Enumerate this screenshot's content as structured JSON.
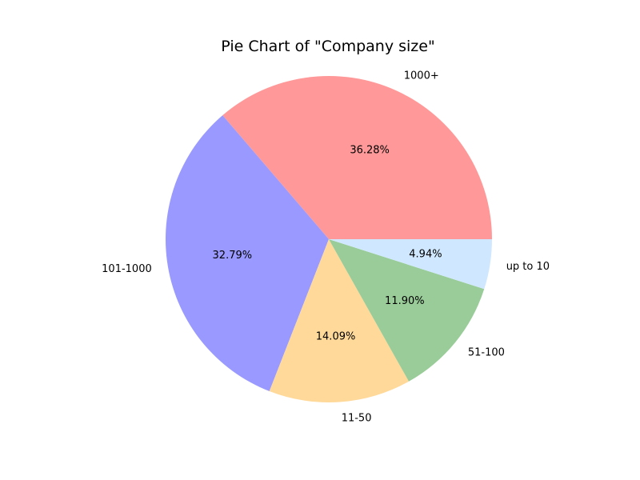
{
  "chart_data": {
    "type": "pie",
    "title": "Pie Chart of \"Company size\"",
    "start_angle_deg": 0,
    "direction": "counterclockwise",
    "slices": [
      {
        "label": "1000+",
        "value": 36.28,
        "percent_label": "36.28%",
        "color": "#ff9999"
      },
      {
        "label": "101-1000",
        "value": 32.79,
        "percent_label": "32.79%",
        "color": "#9999ff"
      },
      {
        "label": "11-50",
        "value": 14.09,
        "percent_label": "14.09%",
        "color": "#ffd999"
      },
      {
        "label": "51-100",
        "value": 11.9,
        "percent_label": "11.90%",
        "color": "#99cc99"
      },
      {
        "label": "up to 10",
        "value": 4.94,
        "percent_label": "4.94%",
        "color": "#d0e8ff"
      }
    ]
  }
}
